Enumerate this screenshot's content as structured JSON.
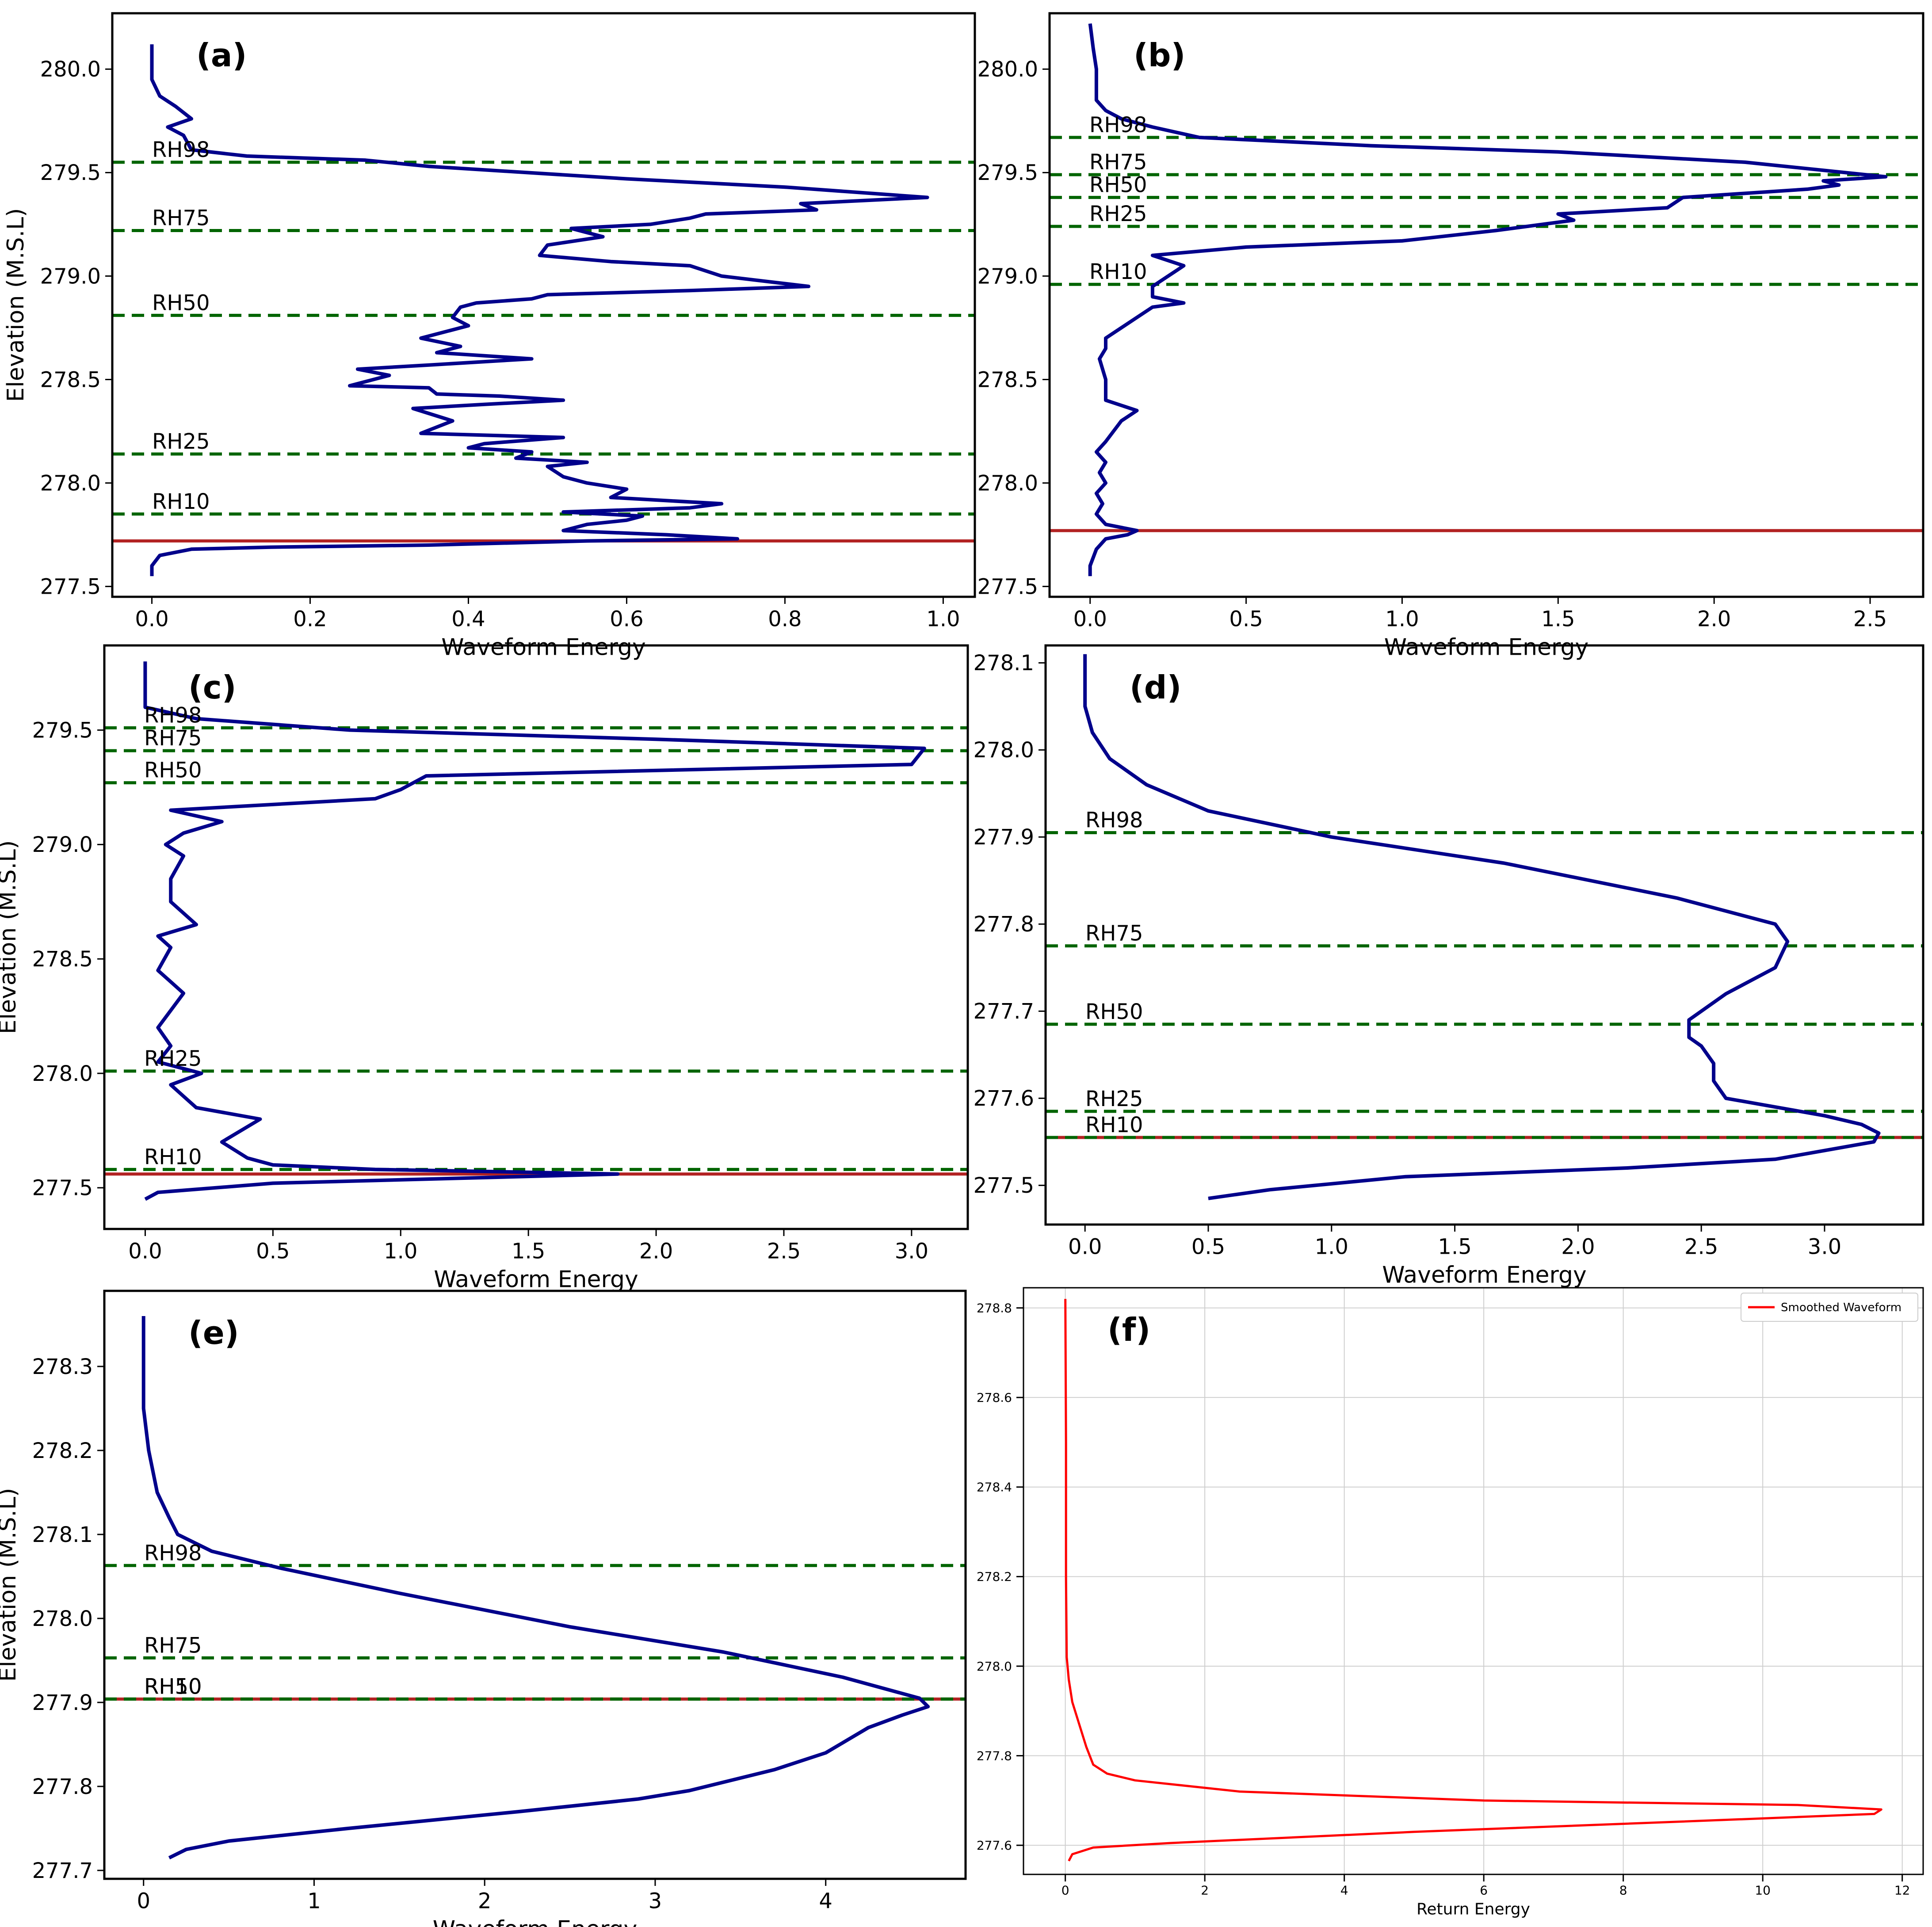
{
  "figure": {
    "panel_count": 6
  },
  "chart_data": [
    {
      "id": "a",
      "type": "line",
      "panel_label": "(a)",
      "xlabel": "Waveform Energy",
      "ylabel": "Elevation (M.S.L)",
      "xlim": [
        -0.05,
        1.04
      ],
      "ylim": [
        277.45,
        280.27
      ],
      "xticks": [
        0,
        0.2,
        0.4,
        0.6,
        0.8,
        1.0
      ],
      "xtick_labels": [
        "0.0",
        "0.2",
        "0.4",
        "0.6",
        "0.8",
        "1.0"
      ],
      "yticks": [
        277.5,
        278.0,
        278.5,
        279.0,
        279.5,
        280.0
      ],
      "ytick_labels": [
        "277.5",
        "278.0",
        "278.5",
        "279.0",
        "279.5",
        "280.0"
      ],
      "series_color": "#00008b",
      "waveform": {
        "x": [
          0,
          0,
          0.01,
          0.05,
          0.15,
          0.35,
          0.55,
          0.74,
          0.65,
          0.52,
          0.55,
          0.6,
          0.62,
          0.52,
          0.68,
          0.72,
          0.58,
          0.6,
          0.55,
          0.52,
          0.5,
          0.55,
          0.46,
          0.48,
          0.4,
          0.42,
          0.52,
          0.34,
          0.38,
          0.33,
          0.42,
          0.52,
          0.44,
          0.36,
          0.35,
          0.25,
          0.3,
          0.26,
          0.35,
          0.48,
          0.36,
          0.39,
          0.34,
          0.4,
          0.38,
          0.39,
          0.41,
          0.48,
          0.5,
          0.68,
          0.83,
          0.72,
          0.68,
          0.58,
          0.49,
          0.5,
          0.57,
          0.53,
          0.63,
          0.68,
          0.7,
          0.84,
          0.82,
          0.98,
          0.8,
          0.6,
          0.35,
          0.27,
          0.12,
          0.05,
          0.04,
          0.02,
          0.05,
          0.03,
          0.01,
          0,
          0,
          0
        ],
        "y": [
          277.55,
          277.6,
          277.65,
          277.68,
          277.69,
          277.7,
          277.72,
          277.73,
          277.75,
          277.77,
          277.8,
          277.82,
          277.84,
          277.86,
          277.88,
          277.9,
          277.93,
          277.97,
          278.0,
          278.03,
          278.08,
          278.1,
          278.12,
          278.15,
          278.17,
          278.19,
          278.22,
          278.24,
          278.3,
          278.36,
          278.38,
          278.4,
          278.42,
          278.43,
          278.46,
          278.47,
          278.52,
          278.55,
          278.57,
          278.6,
          278.63,
          278.66,
          278.7,
          278.76,
          278.8,
          278.85,
          278.87,
          278.89,
          278.91,
          278.93,
          278.95,
          279.0,
          279.05,
          279.07,
          279.1,
          279.15,
          279.19,
          279.23,
          279.25,
          279.28,
          279.3,
          279.32,
          279.35,
          279.38,
          279.43,
          279.47,
          279.53,
          279.56,
          279.58,
          279.61,
          279.68,
          279.72,
          279.76,
          279.82,
          279.87,
          279.95,
          280.05,
          280.12
        ]
      },
      "ground": {
        "label": "",
        "y": 277.72
      },
      "rh_lines": [
        {
          "label": "RH98",
          "y": 279.55
        },
        {
          "label": "RH75",
          "y": 279.22
        },
        {
          "label": "RH50",
          "y": 278.81
        },
        {
          "label": "RH25",
          "y": 278.14
        },
        {
          "label": "RH10",
          "y": 277.85
        }
      ]
    },
    {
      "id": "b",
      "type": "line",
      "panel_label": "(b)",
      "xlabel": "Waveform Energy",
      "ylabel": "",
      "xlim": [
        -0.13,
        2.67
      ],
      "ylim": [
        277.45,
        280.27
      ],
      "xticks": [
        0,
        0.5,
        1.0,
        1.5,
        2.0,
        2.5
      ],
      "xtick_labels": [
        "0.0",
        "0.5",
        "1.0",
        "1.5",
        "2.0",
        "2.5"
      ],
      "yticks": [
        277.5,
        278.0,
        278.5,
        279.0,
        279.5,
        280.0
      ],
      "ytick_labels": [
        "277.5",
        "278.0",
        "278.5",
        "279.0",
        "279.5",
        "280.0"
      ],
      "series_color": "#00008b",
      "waveform": {
        "x": [
          0.0,
          0.0,
          0.02,
          0.05,
          0.12,
          0.15,
          0.05,
          0.02,
          0.04,
          0.02,
          0.05,
          0.03,
          0.05,
          0.02,
          0.05,
          0.1,
          0.15,
          0.05,
          0.05,
          0.03,
          0.05,
          0.05,
          0.1,
          0.15,
          0.2,
          0.3,
          0.2,
          0.2,
          0.25,
          0.3,
          0.2,
          0.5,
          1.0,
          1.3,
          1.55,
          1.5,
          1.85,
          1.9,
          2.3,
          2.4,
          2.35,
          2.55,
          2.1,
          1.5,
          0.9,
          0.35,
          0.2,
          0.1,
          0.05,
          0.02,
          0.02,
          0.01,
          0.0
        ],
        "y": [
          277.55,
          277.6,
          277.68,
          277.73,
          277.75,
          277.77,
          277.8,
          277.85,
          277.9,
          277.95,
          278.0,
          278.05,
          278.1,
          278.15,
          278.2,
          278.3,
          278.35,
          278.4,
          278.5,
          278.6,
          278.65,
          278.7,
          278.75,
          278.8,
          278.85,
          278.87,
          278.9,
          278.95,
          279.0,
          279.05,
          279.1,
          279.14,
          279.17,
          279.22,
          279.27,
          279.3,
          279.33,
          279.38,
          279.42,
          279.44,
          279.46,
          279.48,
          279.55,
          279.6,
          279.63,
          279.67,
          279.72,
          279.76,
          279.8,
          279.85,
          280.0,
          280.1,
          280.22
        ]
      },
      "ground": {
        "label": "",
        "y": 277.77
      },
      "rh_lines": [
        {
          "label": "RH98",
          "y": 279.67
        },
        {
          "label": "RH75",
          "y": 279.49
        },
        {
          "label": "RH50",
          "y": 279.38
        },
        {
          "label": "RH25",
          "y": 279.24
        },
        {
          "label": "RH10",
          "y": 278.96
        }
      ]
    },
    {
      "id": "c",
      "type": "line",
      "panel_label": "(c)",
      "xlabel": "Waveform Energy",
      "ylabel": "Elevation (M.S.L)",
      "xlim": [
        -0.16,
        3.22
      ],
      "ylim": [
        277.32,
        279.87
      ],
      "xticks": [
        0,
        0.5,
        1.0,
        1.5,
        2.0,
        2.5,
        3.0
      ],
      "xtick_labels": [
        "0.0",
        "0.5",
        "1.0",
        "1.5",
        "2.0",
        "2.5",
        "3.0"
      ],
      "yticks": [
        277.5,
        278.0,
        278.5,
        279.0,
        279.5
      ],
      "ytick_labels": [
        "277.5",
        "278.0",
        "278.5",
        "279.0",
        "279.5"
      ],
      "series_color": "#00008b",
      "waveform": {
        "x": [
          0.0,
          0.05,
          0.5,
          1.85,
          1.4,
          0.9,
          0.5,
          0.4,
          0.3,
          0.45,
          0.2,
          0.15,
          0.1,
          0.22,
          0.05,
          0.1,
          0.05,
          0.15,
          0.05,
          0.1,
          0.05,
          0.2,
          0.1,
          0.1,
          0.15,
          0.08,
          0.15,
          0.3,
          0.1,
          0.9,
          1.0,
          1.1,
          3.0,
          3.05,
          2.0,
          0.8,
          0.2,
          0.0,
          0.0,
          0.0
        ],
        "y": [
          277.45,
          277.48,
          277.52,
          277.56,
          277.57,
          277.58,
          277.6,
          277.63,
          277.7,
          277.8,
          277.85,
          277.9,
          277.95,
          278.0,
          278.05,
          278.12,
          278.2,
          278.35,
          278.45,
          278.55,
          278.6,
          278.65,
          278.75,
          278.85,
          278.95,
          279.0,
          279.05,
          279.1,
          279.15,
          279.2,
          279.24,
          279.3,
          279.35,
          279.42,
          279.46,
          279.5,
          279.55,
          279.6,
          279.7,
          279.8
        ]
      },
      "ground": {
        "label": "",
        "y": 277.56
      },
      "rh_lines": [
        {
          "label": "RH98",
          "y": 279.51
        },
        {
          "label": "RH75",
          "y": 279.41
        },
        {
          "label": "RH50",
          "y": 279.27
        },
        {
          "label": "RH25",
          "y": 278.01
        },
        {
          "label": "RH10",
          "y": 277.58
        }
      ]
    },
    {
      "id": "d",
      "type": "line",
      "panel_label": "(d)",
      "xlabel": "Waveform Energy",
      "ylabel": "",
      "xlim": [
        -0.16,
        3.4
      ],
      "ylim": [
        277.455,
        278.12
      ],
      "xticks": [
        0,
        0.5,
        1.0,
        1.5,
        2.0,
        2.5,
        3.0
      ],
      "xtick_labels": [
        "0.0",
        "0.5",
        "1.0",
        "1.5",
        "2.0",
        "2.5",
        "3.0"
      ],
      "yticks": [
        277.5,
        277.6,
        277.7,
        277.8,
        277.9,
        278.0,
        278.1
      ],
      "ytick_labels": [
        "277.5",
        "277.6",
        "277.7",
        "277.8",
        "277.9",
        "278.0",
        "278.1"
      ],
      "series_color": "#00008b",
      "waveform": {
        "x": [
          0.5,
          0.75,
          1.3,
          2.2,
          2.8,
          3.0,
          3.1,
          3.2,
          3.22,
          3.15,
          3.0,
          2.8,
          2.6,
          2.55,
          2.55,
          2.5,
          2.45,
          2.45,
          2.6,
          2.8,
          2.85,
          2.8,
          2.4,
          1.7,
          1.0,
          0.5,
          0.25,
          0.1,
          0.03,
          0.0,
          0.0
        ],
        "y": [
          277.485,
          277.495,
          277.51,
          277.52,
          277.53,
          277.54,
          277.545,
          277.55,
          277.56,
          277.57,
          277.58,
          277.59,
          277.6,
          277.62,
          277.64,
          277.66,
          277.67,
          277.69,
          277.72,
          277.75,
          277.78,
          277.8,
          277.83,
          277.87,
          277.9,
          277.93,
          277.96,
          277.99,
          278.02,
          278.05,
          278.11
        ]
      },
      "ground": {
        "label": "",
        "y": 277.555
      },
      "rh_lines": [
        {
          "label": "RH98",
          "y": 277.905
        },
        {
          "label": "RH75",
          "y": 277.775
        },
        {
          "label": "RH50",
          "y": 277.685
        },
        {
          "label": "RH25",
          "y": 277.585
        },
        {
          "label": "RH10",
          "y": 277.555
        }
      ]
    },
    {
      "id": "e",
      "type": "line",
      "panel_label": "(e)",
      "xlabel": "Waveform Energy",
      "ylabel": "Elevation (M.S.L)",
      "xlim": [
        -0.23,
        4.82
      ],
      "ylim": [
        277.69,
        278.39
      ],
      "xticks": [
        0,
        1,
        2,
        3,
        4
      ],
      "xtick_labels": [
        "0",
        "1",
        "2",
        "3",
        "4"
      ],
      "yticks": [
        277.7,
        277.8,
        277.9,
        278.0,
        278.1,
        278.2,
        278.3
      ],
      "ytick_labels": [
        "277.7",
        "277.8",
        "277.9",
        "278.0",
        "278.1",
        "278.2",
        "278.3"
      ],
      "series_color": "#00008b",
      "waveform": {
        "x": [
          0.15,
          0.25,
          0.5,
          1.2,
          2.2,
          2.9,
          3.2,
          3.7,
          4.0,
          4.25,
          4.45,
          4.6,
          4.55,
          4.1,
          3.4,
          2.5,
          1.5,
          0.8,
          0.4,
          0.2,
          0.15,
          0.08,
          0.03,
          0.0,
          0.0
        ],
        "y": [
          277.715,
          277.725,
          277.735,
          277.75,
          277.77,
          277.785,
          277.795,
          277.82,
          277.84,
          277.87,
          277.885,
          277.895,
          277.905,
          277.93,
          277.96,
          277.99,
          278.03,
          278.06,
          278.08,
          278.1,
          278.12,
          278.15,
          278.2,
          278.25,
          278.36
        ]
      },
      "ground": {
        "label": "",
        "y": 277.904
      },
      "rh_lines": [
        {
          "label": "RH98",
          "y": 278.063
        },
        {
          "label": "RH75",
          "y": 277.953
        },
        {
          "label": "RH50",
          "y": 277.904
        },
        {
          "label": "RH10",
          "y": 277.904
        }
      ]
    },
    {
      "id": "f",
      "type": "line",
      "panel_label": "(f)",
      "xlabel": "Return Energy",
      "ylabel": "",
      "xlim": [
        -0.6,
        12.3
      ],
      "ylim": [
        277.535,
        278.845
      ],
      "xticks": [
        0,
        2,
        4,
        6,
        8,
        10,
        12
      ],
      "xtick_labels": [
        "0",
        "2",
        "4",
        "6",
        "8",
        "10",
        "12"
      ],
      "yticks": [
        277.6,
        277.8,
        278.0,
        278.2,
        278.4,
        278.6,
        278.8
      ],
      "ytick_labels": [
        "277.6",
        "277.8",
        "278.0",
        "278.2",
        "278.4",
        "278.6",
        "278.8"
      ],
      "grid": true,
      "legend": {
        "entries": [
          "Smoothed Waveform"
        ],
        "placement": "top-right"
      },
      "series_color": "#ff0000",
      "waveform": {
        "x": [
          0.05,
          0.1,
          0.4,
          1.5,
          5.0,
          10.0,
          11.6,
          11.7,
          10.5,
          6.0,
          2.5,
          1.0,
          0.6,
          0.4,
          0.3,
          0.2,
          0.1,
          0.05,
          0.02,
          0.01,
          0.01,
          0.0
        ],
        "y": [
          277.565,
          277.58,
          277.595,
          277.605,
          277.63,
          277.66,
          277.67,
          277.68,
          277.69,
          277.7,
          277.72,
          277.745,
          277.76,
          277.78,
          277.82,
          277.87,
          277.92,
          277.97,
          278.02,
          278.2,
          278.5,
          278.82
        ]
      },
      "rh_lines": []
    }
  ]
}
